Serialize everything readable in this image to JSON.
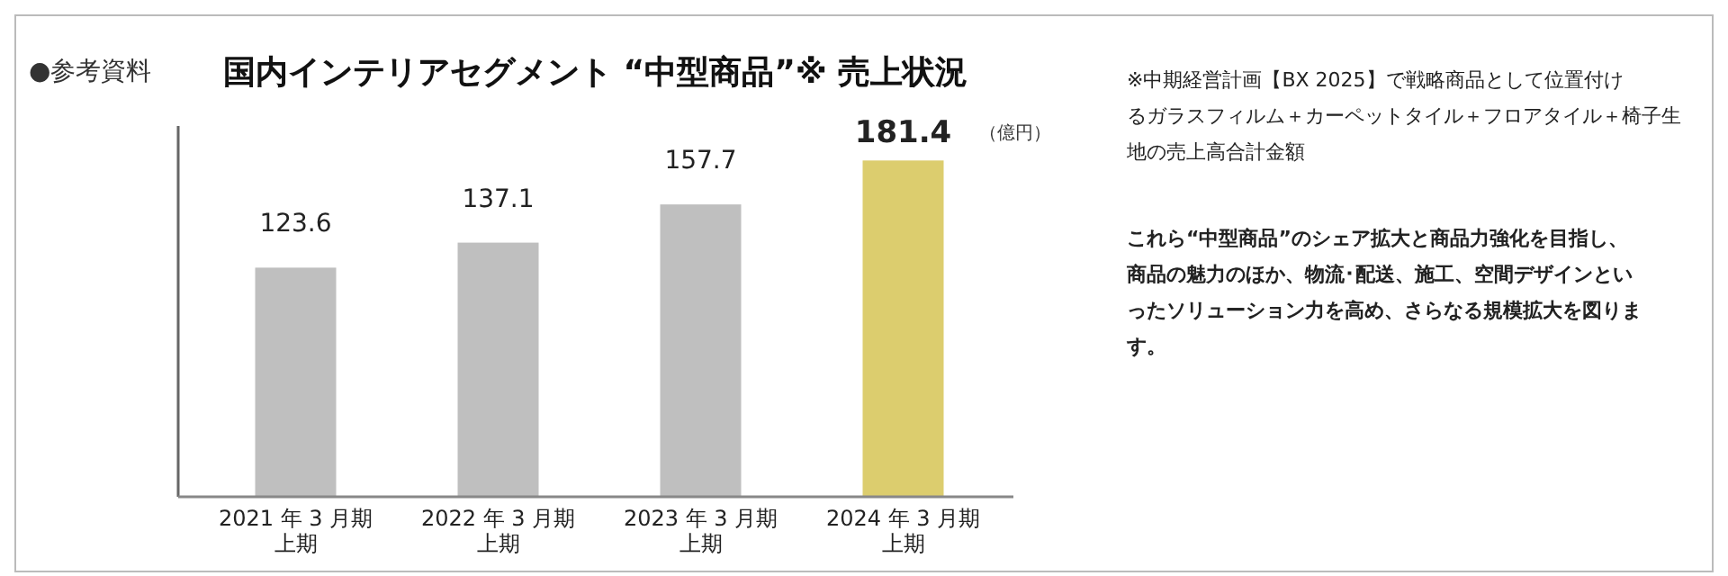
{
  "chart_data": {
    "type": "bar",
    "title": "国内インテリアセグメント “中型商品”※ 売上状況",
    "ylabel": "（億円）",
    "categories": [
      "2021 年 3 月期上期",
      "2022 年 3 月期上期",
      "2023 年 3 月期上期",
      "2024 年 3 月期上期"
    ],
    "values": [
      123.6,
      137.1,
      157.7,
      181.4
    ],
    "colors": [
      "#bfbfbf",
      "#bfbfbf",
      "#bfbfbf",
      "#dccd6e"
    ],
    "ylim": [
      0,
      200
    ],
    "tick_labels": "x",
    "data_labels": true,
    "annotations": [
      "●参考資料",
      "※中期経営計画【BX 2025】で戦略商品として位置付けるガラスフィルム＋カーペットタイル＋フロアタイル＋椅子生地の売上高合計金額",
      "これら“中型商品”のシェア拡大と商品力強化を目指し、商品の魅力のほか、物流･配送、施工、空間デザインといったソリューション力を高め、さらなる規模拡大を図ります。"
    ]
  }
}
